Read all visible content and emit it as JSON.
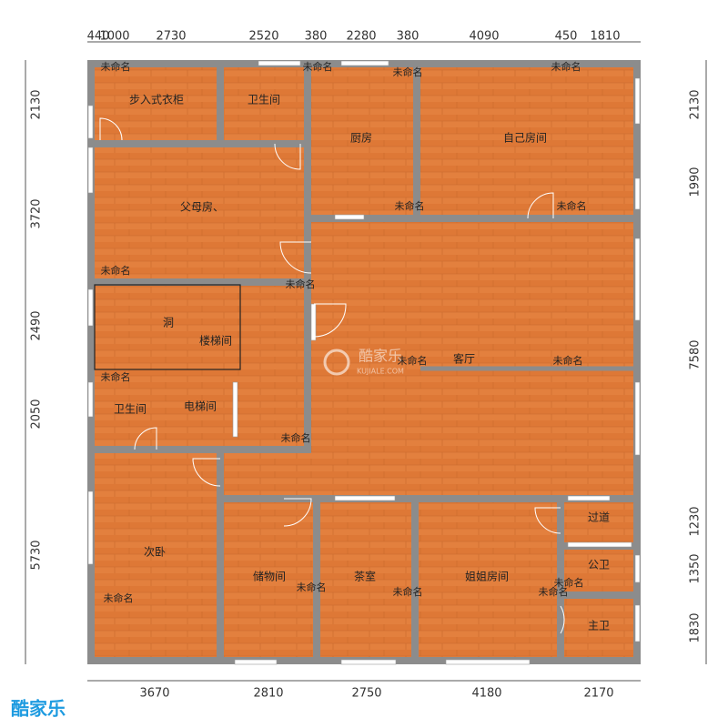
{
  "dimensions": {
    "top": [
      440,
      1000,
      2730,
      2520,
      380,
      2280,
      380,
      4090,
      450,
      1810
    ],
    "bottom": [
      3670,
      2810,
      2750,
      4180,
      2170
    ],
    "left": [
      2130,
      3720,
      2490,
      2050,
      5730
    ],
    "right": [
      2130,
      1990,
      7580,
      1230,
      1350,
      1830
    ]
  },
  "rooms": [
    "步入式衣柜",
    "卫生间",
    "厨房",
    "自己房间",
    "父母房、",
    "洞",
    "楼梯间",
    "客厅",
    "卫生间",
    "电梯间",
    "次卧",
    "储物间",
    "茶室",
    "姐姐房间",
    "过道",
    "公卫",
    "主卫"
  ],
  "unnamed_labels": [
    "未命名",
    "未命名",
    "未命名",
    "未命名",
    "未命名",
    "未命名",
    "未命名",
    "未命名",
    "未命名",
    "未命名",
    "未命名",
    "未命名",
    "未命名",
    "未命名",
    "未命名",
    "未命名",
    "未命名"
  ],
  "watermark": {
    "center_logo": "酷家乐",
    "center_site": "KUJIALE.COM",
    "corner_logo": "酷家乐"
  }
}
